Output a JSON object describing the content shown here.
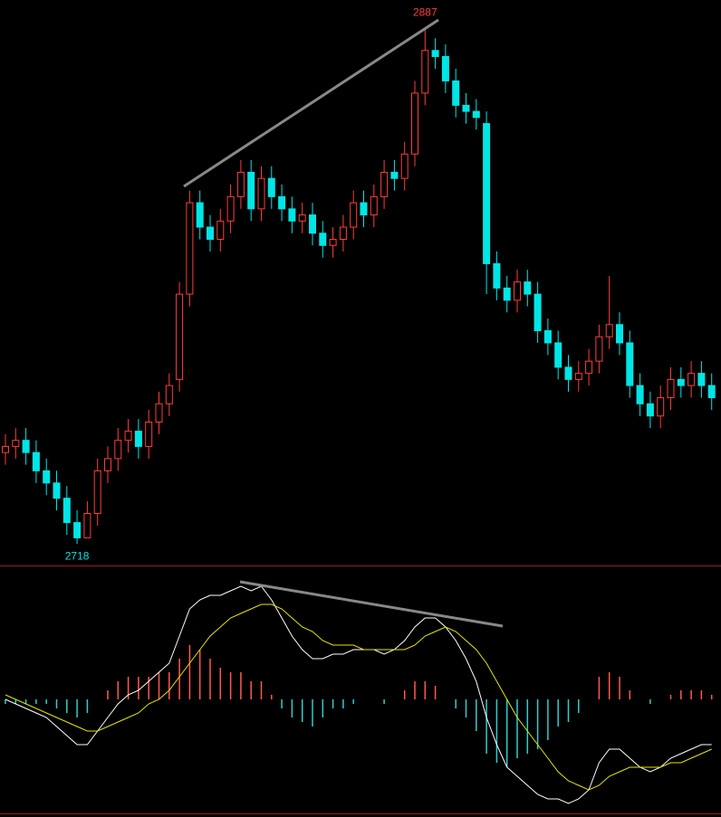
{
  "chart_data": [
    {
      "type": "candlestick",
      "up_color": "#ff3c3c",
      "down_color": "#00e5e5",
      "ylim": [
        2713,
        2893
      ],
      "open": [
        2748,
        2750,
        2752,
        2748,
        2742,
        2738,
        2733,
        2725,
        2720,
        2728,
        2742,
        2746,
        2752,
        2755,
        2750,
        2758,
        2764,
        2772,
        2800,
        2830,
        2822,
        2818,
        2824,
        2832,
        2840,
        2828,
        2838,
        2832,
        2828,
        2824,
        2826,
        2820,
        2816,
        2818,
        2822,
        2830,
        2826,
        2832,
        2840,
        2838,
        2846,
        2866,
        2880,
        2878,
        2870,
        2862,
        2860,
        2856,
        2810,
        2802,
        2798,
        2804,
        2800,
        2788,
        2784,
        2776,
        2772,
        2774,
        2778,
        2786,
        2790,
        2784,
        2770,
        2764,
        2760,
        2766,
        2772,
        2770,
        2774,
        2770
      ],
      "high": [
        2754,
        2756,
        2756,
        2752,
        2746,
        2742,
        2737,
        2729,
        2732,
        2746,
        2750,
        2756,
        2759,
        2759,
        2762,
        2768,
        2774,
        2804,
        2834,
        2834,
        2826,
        2828,
        2836,
        2844,
        2844,
        2842,
        2842,
        2836,
        2832,
        2830,
        2830,
        2824,
        2822,
        2826,
        2834,
        2834,
        2836,
        2844,
        2844,
        2850,
        2870,
        2887,
        2884,
        2882,
        2874,
        2866,
        2864,
        2860,
        2814,
        2806,
        2808,
        2808,
        2804,
        2792,
        2788,
        2780,
        2778,
        2782,
        2790,
        2806,
        2794,
        2788,
        2774,
        2768,
        2770,
        2776,
        2776,
        2778,
        2778,
        2774
      ],
      "low": [
        2744,
        2746,
        2744,
        2738,
        2734,
        2729,
        2721,
        2718,
        2720,
        2724,
        2738,
        2742,
        2748,
        2746,
        2746,
        2754,
        2760,
        2768,
        2796,
        2818,
        2814,
        2814,
        2820,
        2828,
        2824,
        2824,
        2828,
        2824,
        2820,
        2820,
        2816,
        2812,
        2812,
        2814,
        2818,
        2822,
        2822,
        2828,
        2834,
        2834,
        2842,
        2862,
        2874,
        2866,
        2858,
        2856,
        2854,
        2800,
        2798,
        2794,
        2794,
        2796,
        2784,
        2780,
        2772,
        2768,
        2768,
        2770,
        2774,
        2782,
        2780,
        2766,
        2760,
        2756,
        2756,
        2762,
        2766,
        2766,
        2766,
        2762
      ],
      "close": [
        2750,
        2752,
        2748,
        2742,
        2738,
        2733,
        2725,
        2720,
        2728,
        2742,
        2746,
        2752,
        2755,
        2750,
        2758,
        2764,
        2770,
        2800,
        2830,
        2822,
        2818,
        2824,
        2832,
        2840,
        2828,
        2838,
        2832,
        2828,
        2824,
        2826,
        2820,
        2816,
        2818,
        2822,
        2830,
        2826,
        2832,
        2840,
        2838,
        2846,
        2866,
        2880,
        2878,
        2870,
        2862,
        2860,
        2858,
        2810,
        2802,
        2798,
        2804,
        2800,
        2788,
        2784,
        2776,
        2772,
        2774,
        2778,
        2786,
        2790,
        2784,
        2770,
        2764,
        2760,
        2766,
        2772,
        2770,
        2774,
        2770,
        2766
      ]
    },
    {
      "type": "macd",
      "ylim": [
        -24,
        28
      ],
      "series": [
        {
          "color": "#ffffff",
          "values": [
            0,
            -1,
            -2,
            -3,
            -4,
            -6,
            -8,
            -10,
            -10,
            -7,
            -4,
            -1,
            1,
            2,
            4,
            6,
            8,
            14,
            20,
            22,
            23,
            23,
            24,
            25,
            24,
            25,
            22,
            18,
            14,
            11,
            9,
            9,
            10,
            10,
            11,
            11,
            11,
            10,
            11,
            13,
            16,
            18,
            18,
            16,
            13,
            9,
            4,
            -4,
            -10,
            -15,
            -17,
            -19,
            -21,
            -22,
            -22,
            -23,
            -22,
            -20,
            -14,
            -11,
            -11,
            -13,
            -15,
            -16,
            -15,
            -13,
            -12,
            -11,
            -10,
            -10
          ]
        },
        {
          "color": "#e6e600",
          "values": [
            1,
            0,
            -1,
            -2,
            -3,
            -4,
            -5,
            -6,
            -7,
            -7,
            -6,
            -5,
            -4,
            -3,
            -1,
            0,
            2,
            5,
            8,
            11,
            14,
            16,
            18,
            19,
            20,
            21,
            21,
            20,
            18,
            16,
            15,
            13,
            12,
            12,
            12,
            11,
            11,
            11,
            11,
            11,
            12,
            14,
            15,
            16,
            15,
            13,
            11,
            8,
            4,
            0,
            -4,
            -7,
            -10,
            -13,
            -16,
            -18,
            -19,
            -20,
            -19,
            -17,
            -16,
            -15,
            -15,
            -15,
            -15,
            -14,
            -14,
            -13,
            -12,
            -11
          ]
        }
      ],
      "hist": {
        "up_color": "#ff5a4a",
        "down_color": "#33cccc",
        "values": [
          -1,
          -1,
          -1,
          -1,
          -1,
          -2,
          -3,
          -4,
          -3,
          0,
          2,
          4,
          5,
          5,
          5,
          6,
          6,
          9,
          12,
          11,
          9,
          7,
          6,
          6,
          4,
          4,
          1,
          -2,
          -4,
          -5,
          -6,
          -4,
          -2,
          -2,
          -1,
          0,
          0,
          -1,
          0,
          2,
          4,
          4,
          3,
          0,
          -2,
          -4,
          -7,
          -12,
          -14,
          -15,
          -13,
          -12,
          -11,
          -9,
          -6,
          -5,
          -3,
          0,
          5,
          6,
          5,
          2,
          0,
          -1,
          0,
          1,
          2,
          2,
          2,
          1
        ]
      }
    }
  ]
}
